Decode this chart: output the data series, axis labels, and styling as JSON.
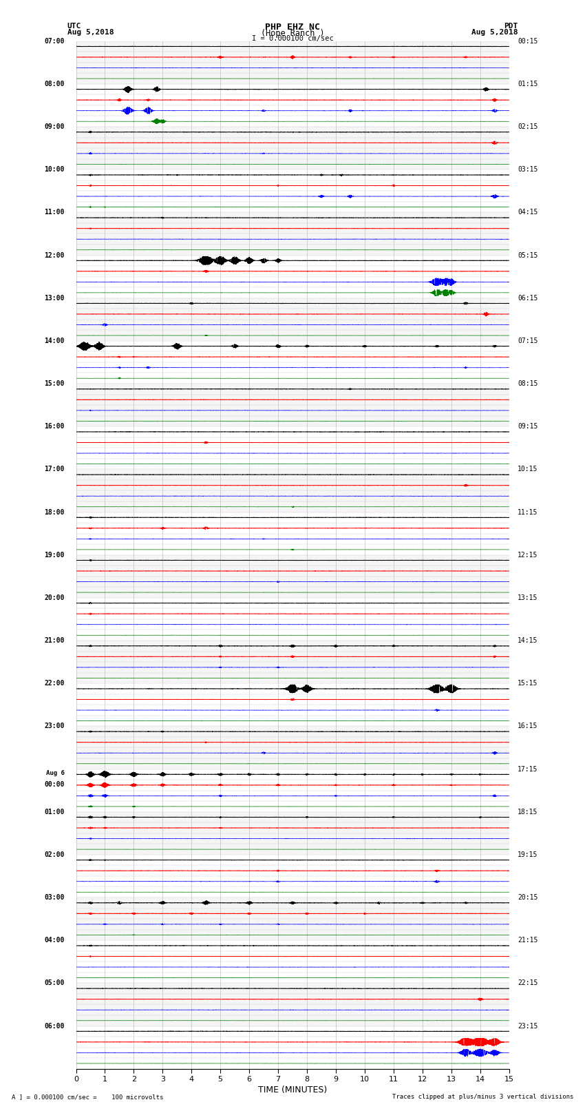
{
  "title_line1": "PHP EHZ NC",
  "title_line2": "(Hope Ranch )",
  "scale_label": "I = 0.000100 cm/sec",
  "left_header_line1": "UTC",
  "left_header_line2": "Aug 5,2018",
  "right_header_line1": "PDT",
  "right_header_line2": "Aug 5,2018",
  "xlabel": "TIME (MINUTES)",
  "footer_left": "A ] = 0.000100 cm/sec =    100 microvolts",
  "footer_right": "Traces clipped at plus/minus 3 vertical divisions",
  "utc_labels": [
    "07:00",
    "08:00",
    "09:00",
    "10:00",
    "11:00",
    "12:00",
    "13:00",
    "14:00",
    "15:00",
    "16:00",
    "17:00",
    "18:00",
    "19:00",
    "20:00",
    "21:00",
    "22:00",
    "23:00",
    "Aug 6\n00:00",
    "01:00",
    "02:00",
    "03:00",
    "04:00",
    "05:00",
    "06:00"
  ],
  "pdt_labels": [
    "00:15",
    "01:15",
    "02:15",
    "03:15",
    "04:15",
    "05:15",
    "06:15",
    "07:15",
    "08:15",
    "09:15",
    "10:15",
    "11:15",
    "12:15",
    "13:15",
    "14:15",
    "15:15",
    "16:15",
    "17:15",
    "18:15",
    "19:15",
    "20:15",
    "21:15",
    "22:15",
    "23:15"
  ],
  "colors": [
    "black",
    "red",
    "blue",
    "green"
  ],
  "bg_color": "white",
  "num_rows": 96,
  "xmin": 0,
  "xmax": 15,
  "grid_color": "#999999",
  "label_fontsize": 7.0,
  "title_fontsize": 9,
  "header_fontsize": 8,
  "num_hours": 24,
  "rows_per_hour": 4
}
